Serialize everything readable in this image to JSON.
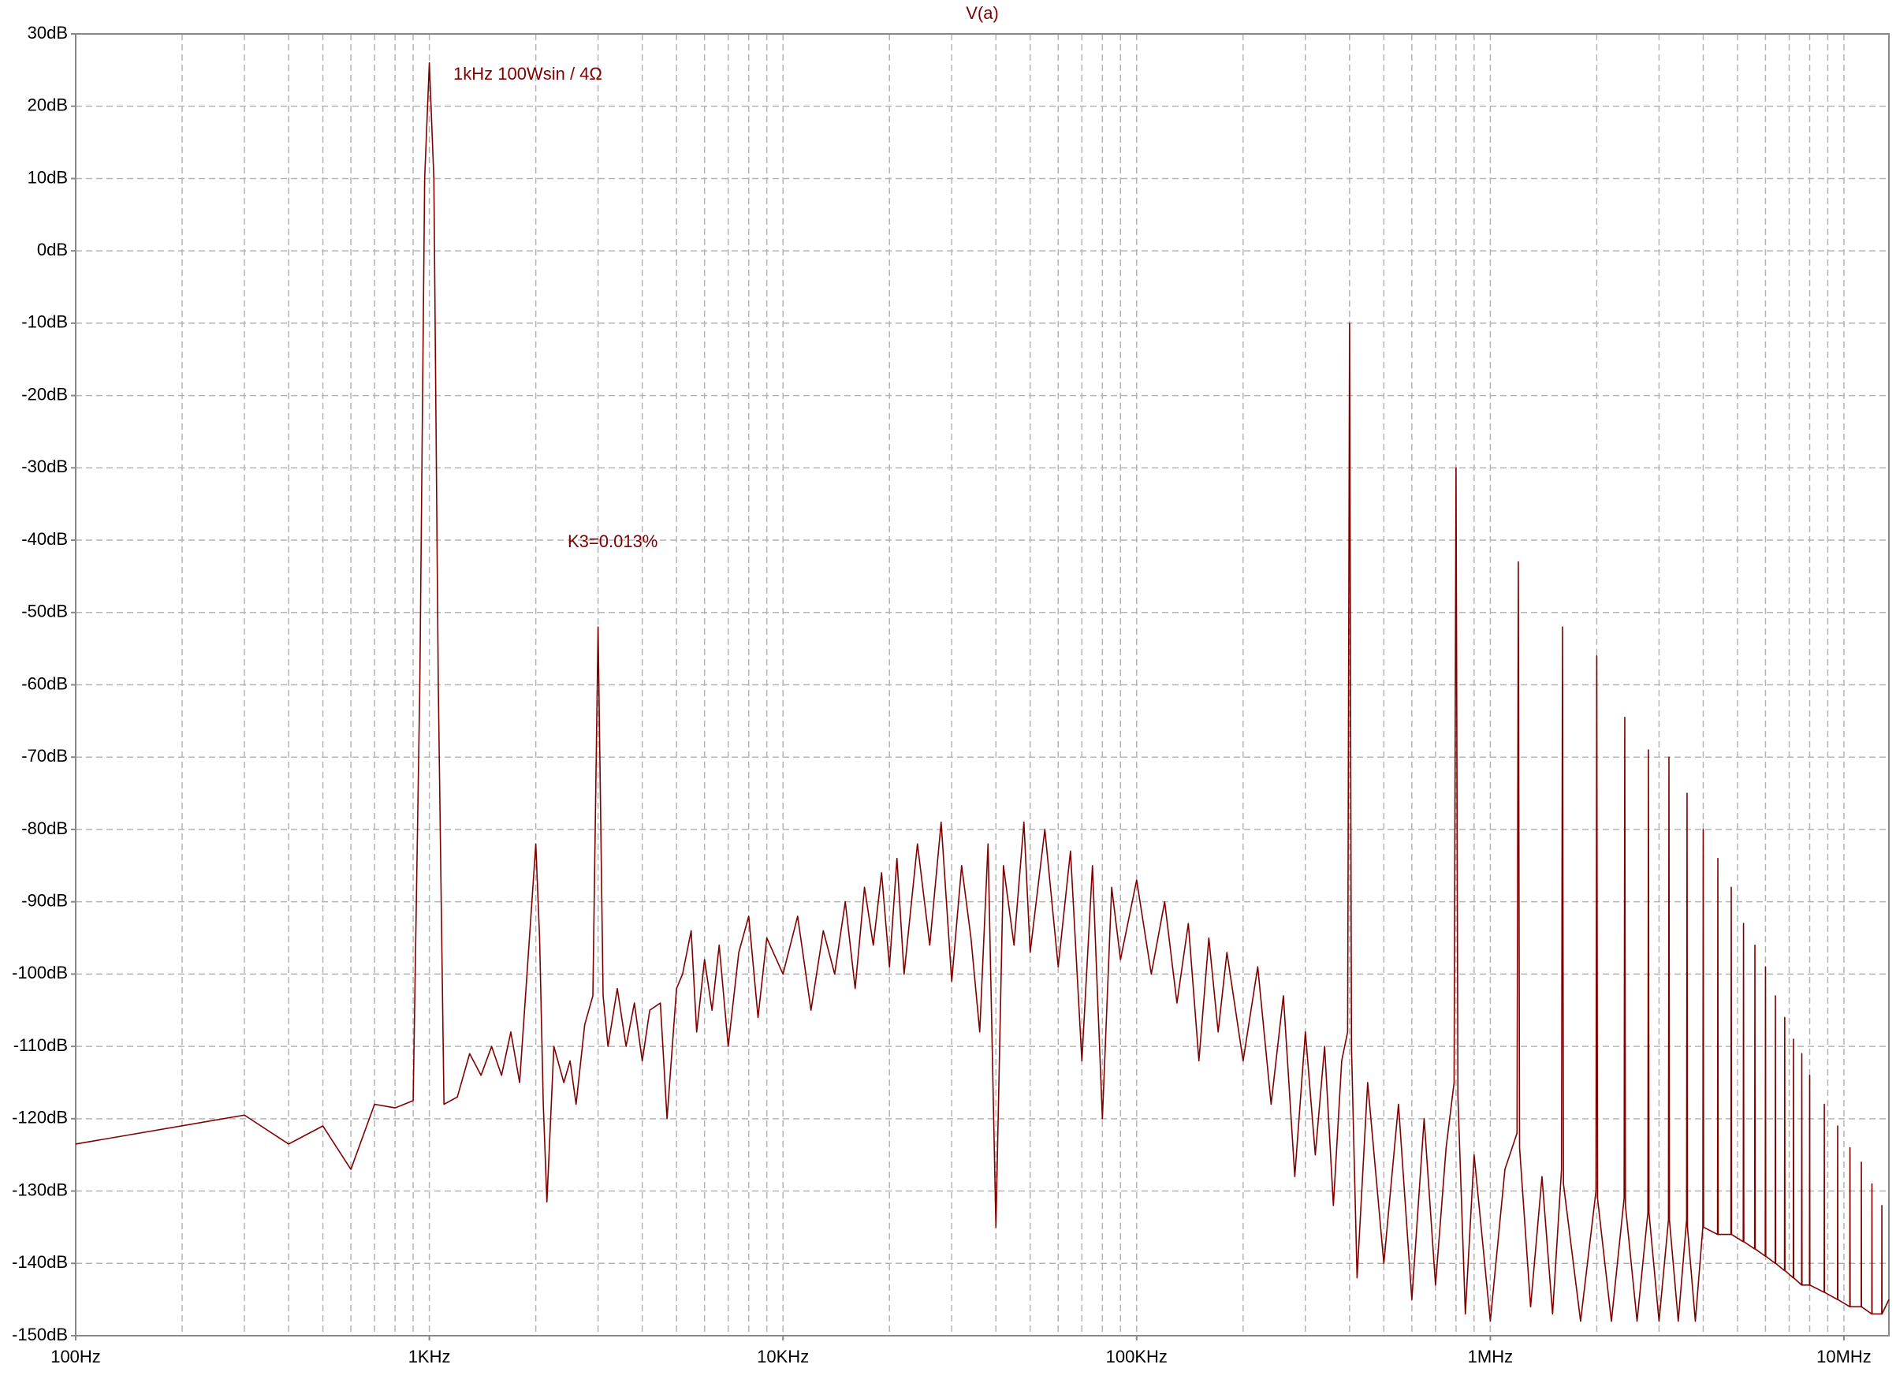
{
  "chart_data": {
    "type": "line",
    "title": "V(a)",
    "color": "#800000",
    "xscale": "log",
    "grid": true,
    "annotations": [
      {
        "text": "1kHz  100Wsin / 4Ω"
      },
      {
        "text": "K3=0.013%"
      }
    ],
    "xlim": [
      100,
      13400000
    ],
    "ylim": [
      -150,
      30
    ],
    "xticks": [
      {
        "value": 100,
        "label": "100Hz"
      },
      {
        "value": 1000,
        "label": "1KHz"
      },
      {
        "value": 10000,
        "label": "10KHz"
      },
      {
        "value": 100000,
        "label": "100KHz"
      },
      {
        "value": 1000000,
        "label": "1MHz"
      },
      {
        "value": 10000000,
        "label": "10MHz"
      }
    ],
    "yticks": [
      {
        "value": 30,
        "label": "30dB"
      },
      {
        "value": 20,
        "label": "20dB"
      },
      {
        "value": 10,
        "label": "10dB"
      },
      {
        "value": 0,
        "label": "0dB"
      },
      {
        "value": -10,
        "label": "-10dB"
      },
      {
        "value": -20,
        "label": "-20dB"
      },
      {
        "value": -30,
        "label": "-30dB"
      },
      {
        "value": -40,
        "label": "-40dB"
      },
      {
        "value": -50,
        "label": "-50dB"
      },
      {
        "value": -60,
        "label": "-60dB"
      },
      {
        "value": -70,
        "label": "-70dB"
      },
      {
        "value": -80,
        "label": "-80dB"
      },
      {
        "value": -90,
        "label": "-90dB"
      },
      {
        "value": -100,
        "label": "-100dB"
      },
      {
        "value": -110,
        "label": "-110dB"
      },
      {
        "value": -120,
        "label": "-120dB"
      },
      {
        "value": -130,
        "label": "-130dB"
      },
      {
        "value": -140,
        "label": "-140dB"
      },
      {
        "value": -150,
        "label": "-150dB"
      }
    ],
    "x": [
      100,
      300,
      400,
      500,
      600,
      700,
      800,
      900,
      940,
      970,
      1000,
      1030,
      1060,
      1100,
      1200,
      1300,
      1400,
      1500,
      1600,
      1700,
      1800,
      1950,
      2000,
      2050,
      2100,
      2150,
      2250,
      2400,
      2500,
      2600,
      2750,
      2900,
      3000,
      3100,
      3200,
      3400,
      3600,
      3800,
      4000,
      4200,
      4500,
      4700,
      5000,
      5200,
      5500,
      5700,
      6000,
      6300,
      6600,
      7000,
      7500,
      8000,
      8500,
      9000,
      10000,
      11000,
      12000,
      13000,
      14000,
      15000,
      16000,
      17000,
      18000,
      19000,
      20000,
      21000,
      22000,
      24000,
      26000,
      28000,
      30000,
      32000,
      34000,
      36000,
      38000,
      40000,
      42000,
      45000,
      48000,
      50000,
      55000,
      60000,
      65000,
      70000,
      75000,
      80000,
      85000,
      90000,
      100000,
      110000,
      120000,
      130000,
      140000,
      150000,
      160000,
      170000,
      180000,
      200000,
      220000,
      240000,
      260000,
      280000,
      300000,
      320000,
      340000,
      360000,
      380000,
      395000,
      400000,
      405000,
      420000,
      450000,
      500000,
      550000,
      600000,
      650000,
      700000,
      750000,
      790000,
      800000,
      810000,
      850000,
      900000,
      1000000,
      1100000,
      1190000,
      1200000,
      1210000,
      1300000,
      1400000,
      1500000,
      1590000,
      1600000,
      1610000,
      1800000,
      1990000,
      2000000,
      2010000,
      2200000,
      2390000,
      2400000,
      2410000,
      2600000,
      2790000,
      2800000,
      2810000,
      3000000,
      3190000,
      3200000,
      3210000,
      3400000,
      3590000,
      3600000,
      3610000,
      3800000,
      3990000,
      4000000,
      4010000,
      4390000,
      4400000,
      4410000,
      4790000,
      4800000,
      4810000,
      5190000,
      5200000,
      5210000,
      5590000,
      5600000,
      5610000,
      5990000,
      6000000,
      6010000,
      6390000,
      6400000,
      6410000,
      6790000,
      6800000,
      6810000,
      7190000,
      7200000,
      7210000,
      7590000,
      7600000,
      7610000,
      7990000,
      8000000,
      8010000,
      8790000,
      8800000,
      8810000,
      9590000,
      9600000,
      9610000,
      10390000,
      10400000,
      10410000,
      11190000,
      11200000,
      11210000,
      11990000,
      12000000,
      12010000,
      12790000,
      12800000,
      12810000,
      13400000
    ],
    "values": [
      -123.5,
      -119.5,
      -123.5,
      -121,
      -127,
      -118,
      -118.5,
      -117.5,
      -60,
      10,
      26,
      10,
      -60,
      -118,
      -117,
      -111,
      -114,
      -110,
      -114,
      -108,
      -115,
      -90,
      -82,
      -95,
      -118,
      -131.5,
      -110,
      -115,
      -112,
      -118,
      -107,
      -103,
      -52,
      -103,
      -110,
      -102,
      -110,
      -104,
      -112,
      -105,
      -104,
      -120,
      -102,
      -100,
      -94,
      -108,
      -98,
      -105,
      -96,
      -110,
      -97,
      -92,
      -106,
      -95,
      -100,
      -92,
      -105,
      -94,
      -100,
      -90,
      -102,
      -88,
      -96,
      -86,
      -99,
      -84,
      -100,
      -82,
      -96,
      -79,
      -101,
      -85,
      -95,
      -108,
      -82,
      -135,
      -85,
      -96,
      -79,
      -97,
      -80,
      -99,
      -83,
      -112,
      -85,
      -120,
      -88,
      -98,
      -87,
      -100,
      -90,
      -104,
      -93,
      -112,
      -95,
      -108,
      -97,
      -112,
      -99,
      -118,
      -103,
      -128,
      -108,
      -125,
      -110,
      -132,
      -112,
      -108,
      -10,
      -110,
      -142,
      -115,
      -140,
      -118,
      -145,
      -120,
      -143,
      -124,
      -115,
      -30,
      -117,
      -147,
      -125,
      -148,
      -127,
      -122,
      -43,
      -124,
      -146,
      -128,
      -147,
      -127,
      -52,
      -129,
      -148,
      -130,
      -56,
      -131,
      -148,
      -131,
      -64.5,
      -132,
      -148,
      -133,
      -69,
      -133,
      -148,
      -134,
      -70,
      -134,
      -148,
      -134,
      -75,
      -135,
      -148,
      -135,
      -80,
      -135,
      -136,
      -84,
      -136,
      -136,
      -88,
      -136,
      -137,
      -93,
      -137,
      -138,
      -96,
      -138,
      -139,
      -99,
      -139,
      -140,
      -103,
      -140,
      -141,
      -106,
      -141,
      -142,
      -109,
      -142,
      -143,
      -111,
      -143,
      -143,
      -114,
      -143,
      -144,
      -118,
      -144,
      -145,
      -121,
      -145,
      -146,
      -124,
      -146,
      -146,
      -126,
      -146,
      -147,
      -129,
      -147,
      -147,
      -132,
      -147,
      -145
    ]
  }
}
